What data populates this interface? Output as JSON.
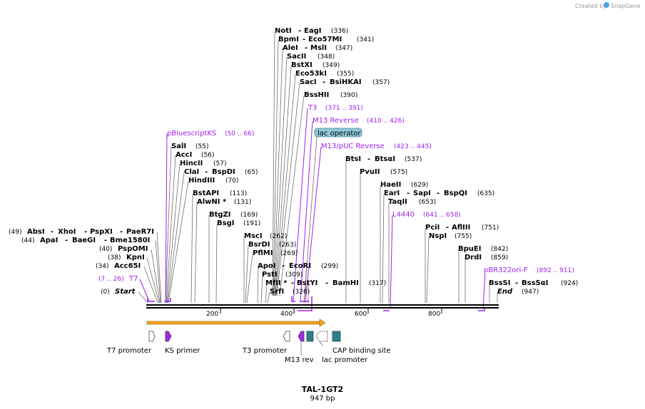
{
  "credit": {
    "prefix": "Created by",
    "brand": "SnapGene"
  },
  "map": {
    "name": "TAL-1GT2",
    "length": "947 bp",
    "ticks": [
      "200",
      "400",
      "600",
      "800"
    ]
  },
  "sites": [
    {
      "label": "NotI",
      "second": "EagI",
      "pos": "(336)"
    },
    {
      "label": "BpmI",
      "second": "Eco57MI",
      "pos": "(341)"
    },
    {
      "label": "AleI",
      "second": "MslI",
      "pos": "(347)"
    },
    {
      "label": "SacII",
      "pos": "(348)"
    },
    {
      "label": "BstXI",
      "pos": "(349)"
    },
    {
      "label": "Eco53kI",
      "pos": "(355)"
    },
    {
      "label": "SacI",
      "second": "BsiHKAI",
      "pos": "(357)"
    },
    {
      "label": "BssHII",
      "pos": "(390)"
    },
    {
      "label": "SalI",
      "pos": "(55)"
    },
    {
      "label": "AccI",
      "pos": "(56)"
    },
    {
      "label": "HincII",
      "pos": "(57)"
    },
    {
      "label": "ClaI",
      "second": "BspDI",
      "pos": "(65)"
    },
    {
      "label": "HindIII",
      "pos": "(70)"
    },
    {
      "label": "BstAPI",
      "pos": "(113)"
    },
    {
      "label": "AlwNI *",
      "pos": "(131)"
    },
    {
      "label": "BtgZI",
      "pos": "(169)"
    },
    {
      "label": "BsgI",
      "pos": "(191)"
    },
    {
      "label": "AbsI",
      "second": "XhoI",
      "third": "PspXI",
      "fourth": "PaeR7I",
      "pos": "(49)"
    },
    {
      "label": "ApaI",
      "second": "BaeGI",
      "third": "Bme1580I",
      "pos": "(44)"
    },
    {
      "label": "PspOMI",
      "pos": "(40)"
    },
    {
      "label": "KpnI",
      "pos": "(38)"
    },
    {
      "label": "Acc65I",
      "pos": "(34)"
    },
    {
      "label": "Start",
      "pos": "(0)"
    },
    {
      "label": "MscI",
      "pos": "(262)"
    },
    {
      "label": "BsrDI",
      "pos": "(263)"
    },
    {
      "label": "PflMI",
      "pos": "(269)"
    },
    {
      "label": "ApoI",
      "second": "EcoRI",
      "pos": "(299)"
    },
    {
      "label": "PstI",
      "pos": "(309)"
    },
    {
      "label": "MfII *",
      "second": "BstYI",
      "third": "BamHI",
      "pos": "(317)"
    },
    {
      "label": "SrfI",
      "pos": "(326)"
    },
    {
      "label": "BtsI",
      "second": "BtsαI",
      "pos": "(537)"
    },
    {
      "label": "PvuII",
      "pos": "(575)"
    },
    {
      "label": "HaeII",
      "pos": "(629)"
    },
    {
      "label": "EarI",
      "second": "SapI",
      "third": "BspQI",
      "pos": "(635)"
    },
    {
      "label": "TaqII",
      "pos": "(653)"
    },
    {
      "label": "PciI",
      "second": "AflIII",
      "pos": "(751)"
    },
    {
      "label": "NspI",
      "pos": "(755)"
    },
    {
      "label": "BpuEI",
      "pos": "(842)"
    },
    {
      "label": "DrdI",
      "pos": "(859)"
    },
    {
      "label": "BssSI",
      "second": "BssSαI",
      "pos": "(924)"
    },
    {
      "label": "End",
      "pos": "(947)"
    }
  ],
  "primers": [
    {
      "label": "T3",
      "range": "(371 .. 391)"
    },
    {
      "label": "M13 Reverse",
      "range": "(410 .. 426)"
    },
    {
      "label": "M13/pUC Reverse",
      "range": "(423 .. 445)"
    },
    {
      "label": "pBluescriptKS",
      "range": "(50 .. 66)"
    },
    {
      "label": "T7",
      "range": "(7 .. 26)"
    },
    {
      "label": "L4440",
      "range": "(641 .. 658)"
    },
    {
      "label": "pBR322ori-F",
      "range": "(892 .. 911)"
    }
  ],
  "lac_operator": "lac operator",
  "features": [
    {
      "label": "T7 promoter",
      "color": "#ffffff"
    },
    {
      "label": "KS primer",
      "color": "#9b30d9"
    },
    {
      "label": "T3 promoter",
      "color": "#ffffff"
    },
    {
      "label": "M13 rev",
      "color": "#9b30d9"
    },
    {
      "label": "lac promoter",
      "color": "#ffffff"
    },
    {
      "label": "CAP binding site",
      "color": "#2e7f8a"
    }
  ],
  "colors": {
    "primer": "#a020f0",
    "orf_fill": "#f5a623",
    "operator_fill": "#8fc8d8"
  }
}
